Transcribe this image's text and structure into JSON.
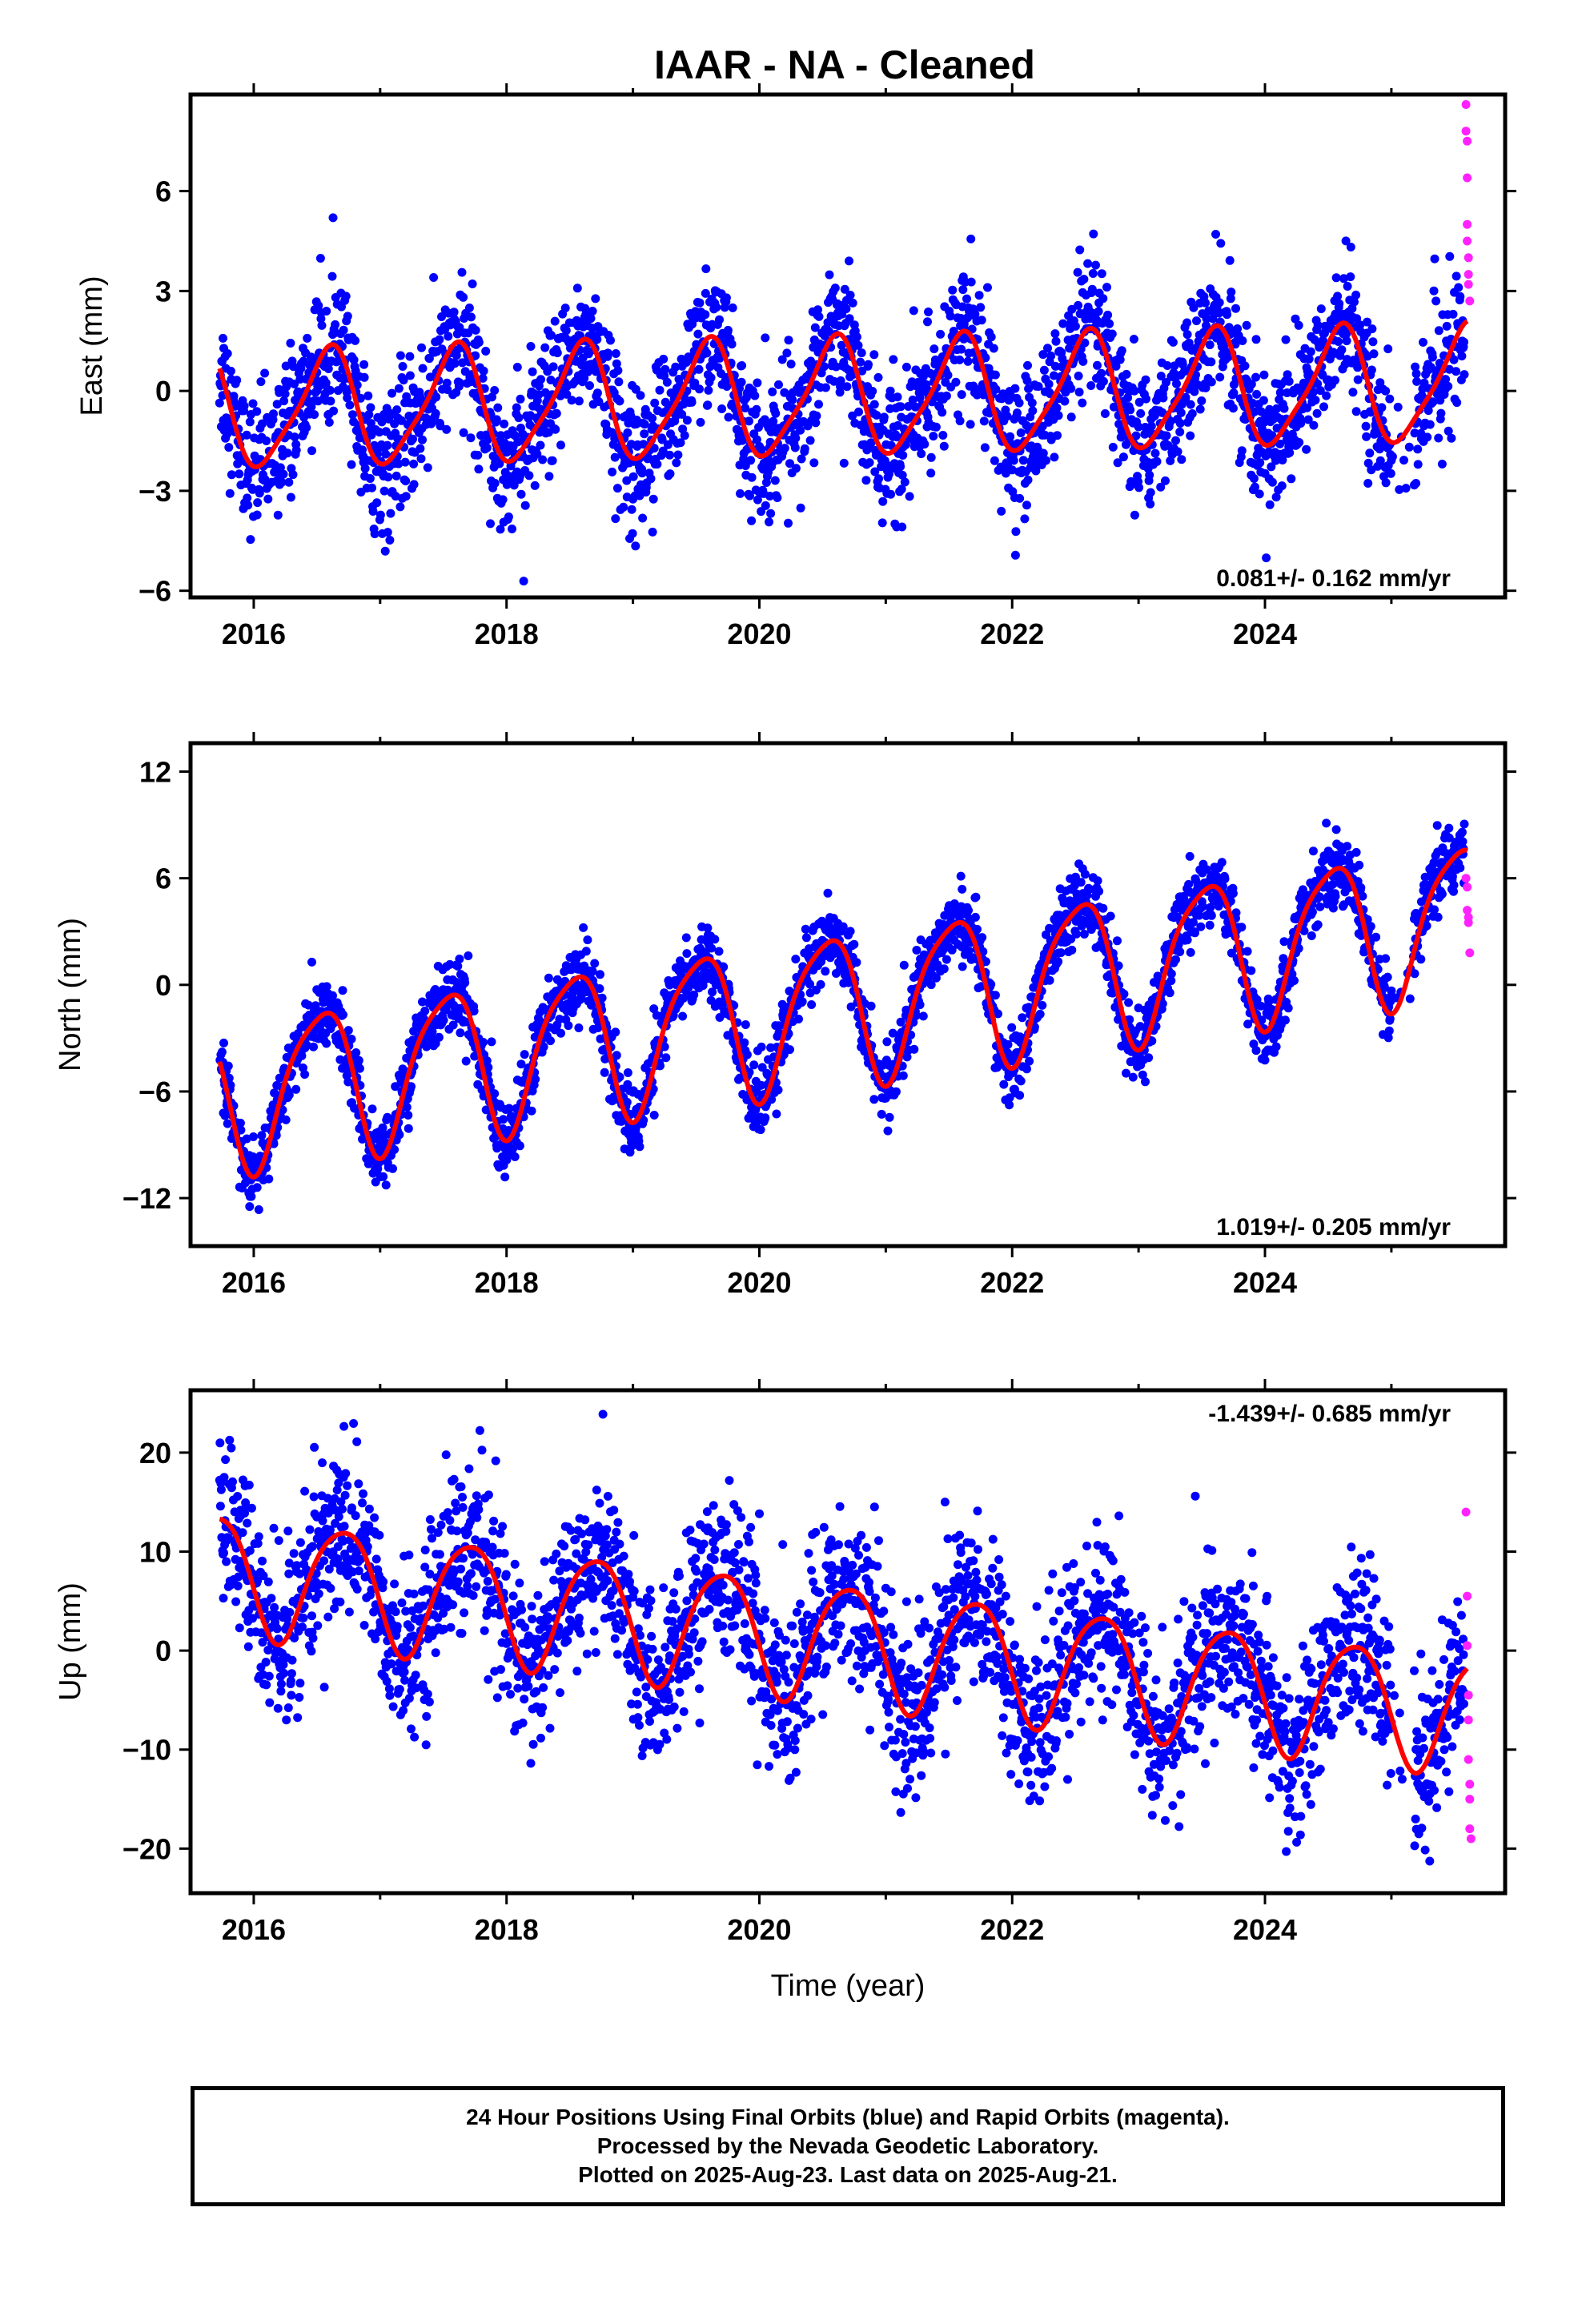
{
  "title": "IAAR  - NA - Cleaned",
  "colors": {
    "final_orbits": "#0000ff",
    "rapid_orbits": "#ff22ff",
    "model": "#ff0000"
  },
  "chart_data": [
    {
      "type": "scatter",
      "component": "East",
      "ylabel": "East (mm)",
      "xlim": [
        2015.5,
        2025.9
      ],
      "ylim": [
        -6.2,
        8.9
      ],
      "yticks": [
        -6,
        -3,
        0,
        3,
        6
      ],
      "ytick_labels": [
        "−6",
        "−3",
        "0",
        "3",
        "6"
      ],
      "xticks": [
        2016,
        2018,
        2020,
        2022,
        2024
      ],
      "rate_label": "0.081+/- 0.162 mm/yr",
      "rate_position": "bottom-right",
      "model": {
        "rate": 0.081,
        "offset": -0.2,
        "annual_amp": 1.7,
        "annual_phase": 2016.33,
        "semiannual_amp": 0.35,
        "semiannual_phase": 2016.55,
        "noise_sd": 1.0,
        "ref_year": 2020.6
      },
      "rapid_points": {
        "x": [
          2025.59,
          2025.59,
          2025.6,
          2025.6,
          2025.6,
          2025.6,
          2025.61,
          2025.61,
          2025.61,
          2025.62
        ],
        "y": [
          8.6,
          7.8,
          7.5,
          6.4,
          5.0,
          4.5,
          4.0,
          3.5,
          3.2,
          2.7
        ]
      }
    },
    {
      "type": "scatter",
      "component": "North",
      "ylabel": "North (mm)",
      "xlim": [
        2015.5,
        2025.9
      ],
      "ylim": [
        -14.7,
        13.6
      ],
      "yticks": [
        -12,
        -6,
        0,
        6,
        12
      ],
      "ytick_labels": [
        "−12",
        "−6",
        "0",
        "6",
        "12"
      ],
      "xticks": [
        2016,
        2018,
        2020,
        2022,
        2024
      ],
      "rate_label": "1.019+/- 0.205 mm/yr",
      "rate_position": "bottom-right",
      "model": {
        "rate": 1.019,
        "offset": -1.2,
        "annual_amp": 4.2,
        "annual_phase": 2016.27,
        "semiannual_amp": 0.8,
        "semiannual_phase": 2016.1,
        "noise_sd": 1.0,
        "ref_year": 2020.6
      },
      "rapid_points": {
        "x": [
          2025.59,
          2025.6,
          2025.6,
          2025.61,
          2025.61,
          2025.62
        ],
        "y": [
          6.0,
          5.5,
          4.2,
          3.8,
          3.5,
          1.8
        ]
      }
    },
    {
      "type": "scatter",
      "component": "Up",
      "ylabel": "Up (mm)",
      "xlim": [
        2015.5,
        2025.9
      ],
      "ylim": [
        -24.5,
        26.3
      ],
      "yticks": [
        -20,
        -10,
        0,
        10,
        20
      ],
      "ytick_labels": [
        "−20",
        "−10",
        "0",
        "10",
        "20"
      ],
      "xticks": [
        2016,
        2018,
        2020,
        2022,
        2024
      ],
      "rate_label": "-1.439+/- 0.685 mm/yr",
      "rate_position": "top-right",
      "model": {
        "rate": -1.439,
        "offset": 1.0,
        "annual_amp": 6.0,
        "annual_phase": 2016.45,
        "semiannual_amp": 0.8,
        "semiannual_phase": 2016.3,
        "noise_sd": 4.2,
        "ref_year": 2020.6
      },
      "rapid_points": {
        "x": [
          2025.59,
          2025.6,
          2025.6,
          2025.61,
          2025.61,
          2025.61,
          2025.62,
          2025.62,
          2025.62,
          2025.63
        ],
        "y": [
          14.0,
          5.5,
          0.5,
          -4.5,
          -7.0,
          -11.0,
          -13.5,
          -15.0,
          -18.0,
          -19.0
        ]
      }
    }
  ],
  "xlabel": "Time (year)",
  "footer": {
    "line1": "24 Hour Positions Using Final Orbits (blue) and Rapid Orbits (magenta).",
    "line2": "Processed by the Nevada Geodetic Laboratory.",
    "line3": "Plotted on 2025-Aug-23. Last data on 2025-Aug-21."
  }
}
